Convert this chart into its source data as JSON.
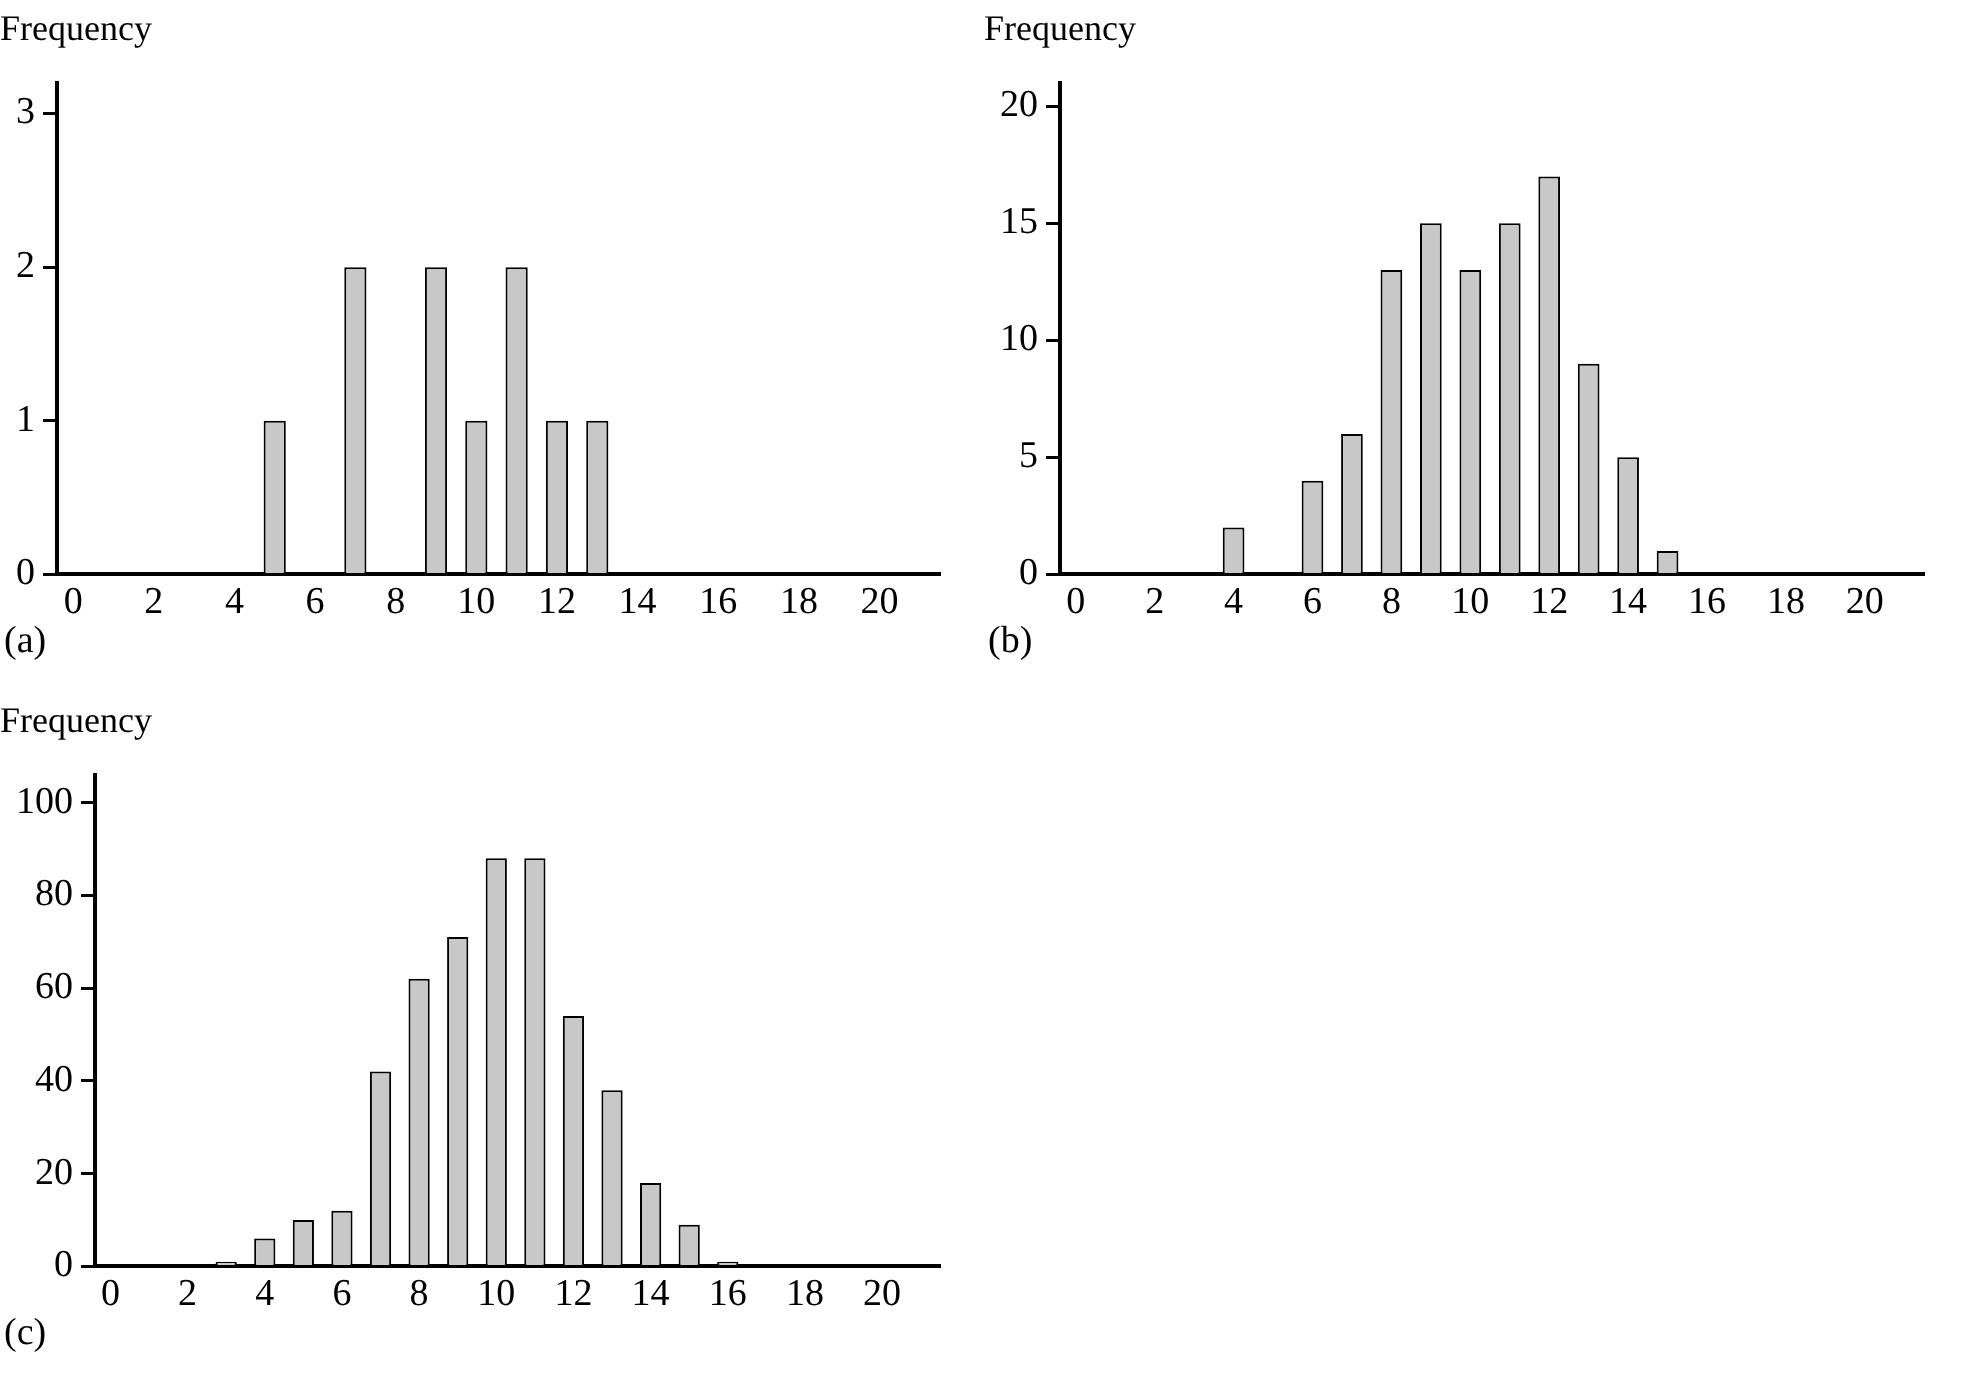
{
  "chart_data": [
    {
      "type": "bar",
      "ylabel": "Frequency",
      "annotations": [
        "(a)"
      ],
      "x": [
        5,
        7,
        9,
        10,
        11,
        12,
        13
      ],
      "values": [
        1,
        2,
        2,
        1,
        2,
        1,
        1
      ],
      "color": "#c8c8c8",
      "xlim": [
        -0.4,
        21.5
      ],
      "xticks": [
        0,
        2,
        4,
        6,
        8,
        10,
        12,
        14,
        16,
        18,
        20
      ],
      "ylim": [
        0,
        3.2
      ],
      "yticks": [
        0,
        1,
        2,
        3
      ],
      "grid": false,
      "legend": false
    },
    {
      "type": "bar",
      "ylabel": "Frequency",
      "annotations": [
        "(b)"
      ],
      "x": [
        4,
        6,
        7,
        8,
        9,
        10,
        11,
        12,
        13,
        14,
        15
      ],
      "values": [
        2,
        4,
        6,
        13,
        15,
        13,
        15,
        17,
        9,
        5,
        1
      ],
      "color": "#c8c8c8",
      "xlim": [
        -0.4,
        21.5
      ],
      "xticks": [
        0,
        2,
        4,
        6,
        8,
        10,
        12,
        14,
        16,
        18,
        20
      ],
      "ylim": [
        0,
        21
      ],
      "yticks": [
        0,
        5,
        10,
        15,
        20
      ],
      "grid": false,
      "legend": false
    },
    {
      "type": "bar",
      "ylabel": "Frequency",
      "annotations": [
        "(c)"
      ],
      "x": [
        3,
        4,
        5,
        6,
        7,
        8,
        9,
        10,
        11,
        12,
        13,
        14,
        15,
        16
      ],
      "values": [
        1,
        6,
        10,
        12,
        42,
        62,
        71,
        88,
        88,
        54,
        38,
        18,
        9,
        1
      ],
      "color": "#c8c8c8",
      "xlim": [
        -0.4,
        21.5
      ],
      "xticks": [
        0,
        2,
        4,
        6,
        8,
        10,
        12,
        14,
        16,
        18,
        20
      ],
      "ylim": [
        0,
        106
      ],
      "yticks": [
        0,
        20,
        40,
        60,
        80,
        100
      ],
      "grid": false,
      "legend": false
    }
  ]
}
